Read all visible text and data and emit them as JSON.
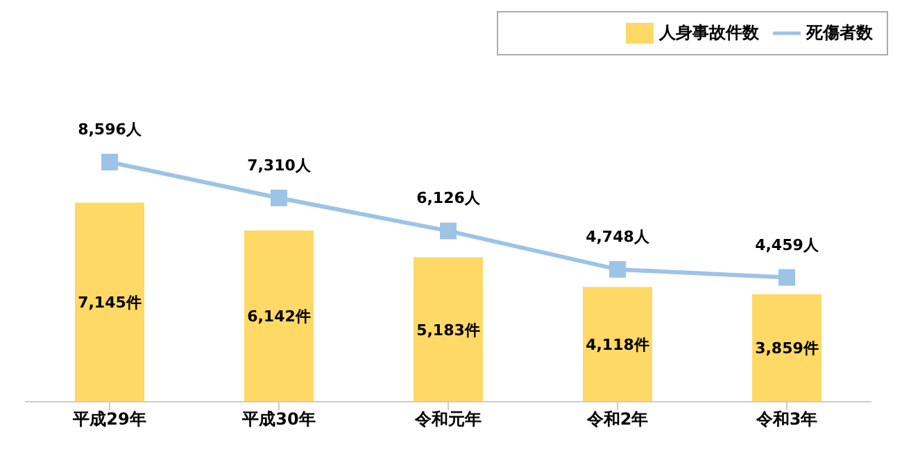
{
  "chart_data": {
    "type": "bar",
    "categories": [
      "平成29年",
      "平成30年",
      "令和元年",
      "令和2年",
      "令和3年"
    ],
    "series": [
      {
        "name": "人身事故件数",
        "color": "#ffd966",
        "values": [
          7145,
          6142,
          5183,
          4118,
          3859
        ],
        "value_labels": [
          "7,145件",
          "6,142件",
          "5,183件",
          "4,118件",
          "3,859件"
        ]
      },
      {
        "name": "死傷者数",
        "type": "line",
        "color": "#9dc3e6",
        "marker": "square",
        "values": [
          8596,
          7310,
          6126,
          4748,
          4459
        ],
        "value_labels": [
          "8,596人",
          "7,310人",
          "6,126人",
          "4,748人",
          "4,459人"
        ]
      }
    ],
    "legend": "top right",
    "grid": false,
    "tick_labels": "x"
  }
}
